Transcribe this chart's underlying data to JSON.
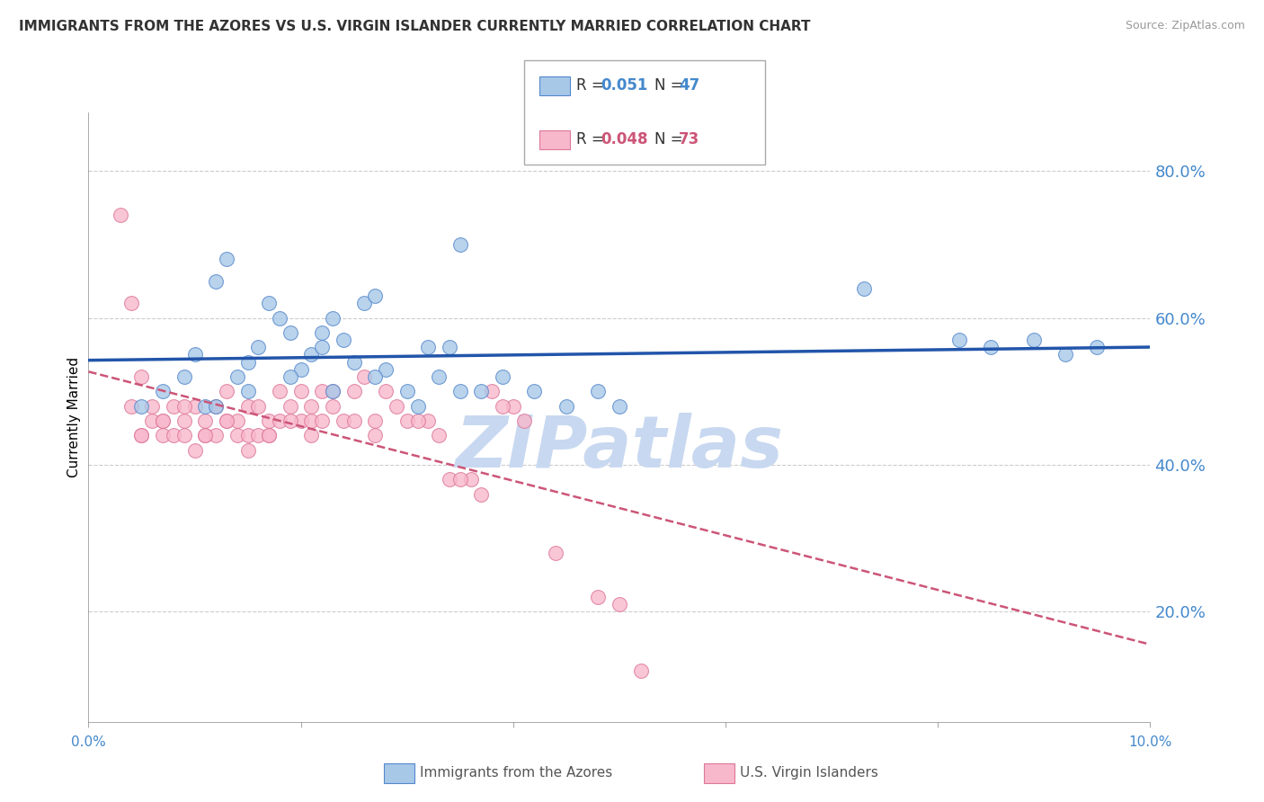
{
  "title": "IMMIGRANTS FROM THE AZORES VS U.S. VIRGIN ISLANDER CURRENTLY MARRIED CORRELATION CHART",
  "source": "Source: ZipAtlas.com",
  "ylabel": "Currently Married",
  "right_ytick_labels": [
    "20.0%",
    "40.0%",
    "60.0%",
    "80.0%"
  ],
  "right_ytick_values": [
    0.2,
    0.4,
    0.6,
    0.8
  ],
  "xlim": [
    0.0,
    0.1
  ],
  "ylim": [
    0.05,
    0.88
  ],
  "legend_blue_r": "0.051",
  "legend_blue_n": "47",
  "legend_pink_r": "0.048",
  "legend_pink_n": "73",
  "blue_color": "#a8c8e8",
  "blue_edge_color": "#5588cc",
  "blue_line_color": "#2255aa",
  "pink_color": "#f8b8cc",
  "pink_edge_color": "#dd7799",
  "pink_line_color": "#cc5577",
  "grid_color": "#cccccc",
  "axis_label_color": "#4488cc",
  "watermark_text": "ZIPatlas",
  "watermark_color": "#c8d8f0",
  "blue_scatter_x": [
    0.005,
    0.007,
    0.009,
    0.01,
    0.011,
    0.012,
    0.013,
    0.014,
    0.015,
    0.016,
    0.017,
    0.018,
    0.019,
    0.02,
    0.021,
    0.022,
    0.022,
    0.023,
    0.024,
    0.025,
    0.026,
    0.027,
    0.028,
    0.03,
    0.032,
    0.033,
    0.034,
    0.035,
    0.037,
    0.039,
    0.042,
    0.045,
    0.048,
    0.05,
    0.073,
    0.082,
    0.085,
    0.089,
    0.092,
    0.095,
    0.012,
    0.015,
    0.019,
    0.023,
    0.027,
    0.031,
    0.035
  ],
  "blue_scatter_y": [
    0.48,
    0.5,
    0.52,
    0.55,
    0.48,
    0.65,
    0.68,
    0.52,
    0.54,
    0.56,
    0.62,
    0.6,
    0.58,
    0.53,
    0.55,
    0.58,
    0.56,
    0.6,
    0.57,
    0.54,
    0.62,
    0.63,
    0.53,
    0.5,
    0.56,
    0.52,
    0.56,
    0.7,
    0.5,
    0.52,
    0.5,
    0.48,
    0.5,
    0.48,
    0.64,
    0.57,
    0.56,
    0.57,
    0.55,
    0.56,
    0.48,
    0.5,
    0.52,
    0.5,
    0.52,
    0.48,
    0.5
  ],
  "pink_scatter_x": [
    0.003,
    0.004,
    0.004,
    0.005,
    0.005,
    0.006,
    0.006,
    0.007,
    0.007,
    0.008,
    0.008,
    0.009,
    0.009,
    0.01,
    0.01,
    0.011,
    0.011,
    0.012,
    0.012,
    0.013,
    0.013,
    0.014,
    0.014,
    0.015,
    0.015,
    0.016,
    0.016,
    0.017,
    0.017,
    0.018,
    0.018,
    0.019,
    0.02,
    0.02,
    0.021,
    0.021,
    0.022,
    0.022,
    0.023,
    0.024,
    0.025,
    0.026,
    0.027,
    0.028,
    0.03,
    0.032,
    0.034,
    0.036,
    0.038,
    0.04,
    0.005,
    0.007,
    0.009,
    0.011,
    0.013,
    0.015,
    0.017,
    0.019,
    0.021,
    0.023,
    0.025,
    0.027,
    0.029,
    0.031,
    0.033,
    0.035,
    0.037,
    0.039,
    0.041,
    0.044,
    0.048,
    0.05,
    0.052
  ],
  "pink_scatter_y": [
    0.74,
    0.62,
    0.48,
    0.52,
    0.44,
    0.46,
    0.48,
    0.46,
    0.44,
    0.48,
    0.44,
    0.46,
    0.44,
    0.48,
    0.42,
    0.46,
    0.44,
    0.48,
    0.44,
    0.5,
    0.46,
    0.46,
    0.44,
    0.48,
    0.44,
    0.48,
    0.44,
    0.46,
    0.44,
    0.5,
    0.46,
    0.48,
    0.5,
    0.46,
    0.46,
    0.44,
    0.5,
    0.46,
    0.48,
    0.46,
    0.5,
    0.52,
    0.46,
    0.5,
    0.46,
    0.46,
    0.38,
    0.38,
    0.5,
    0.48,
    0.44,
    0.46,
    0.48,
    0.44,
    0.46,
    0.42,
    0.44,
    0.46,
    0.48,
    0.5,
    0.46,
    0.44,
    0.48,
    0.46,
    0.44,
    0.38,
    0.36,
    0.48,
    0.46,
    0.28,
    0.22,
    0.21,
    0.12
  ]
}
